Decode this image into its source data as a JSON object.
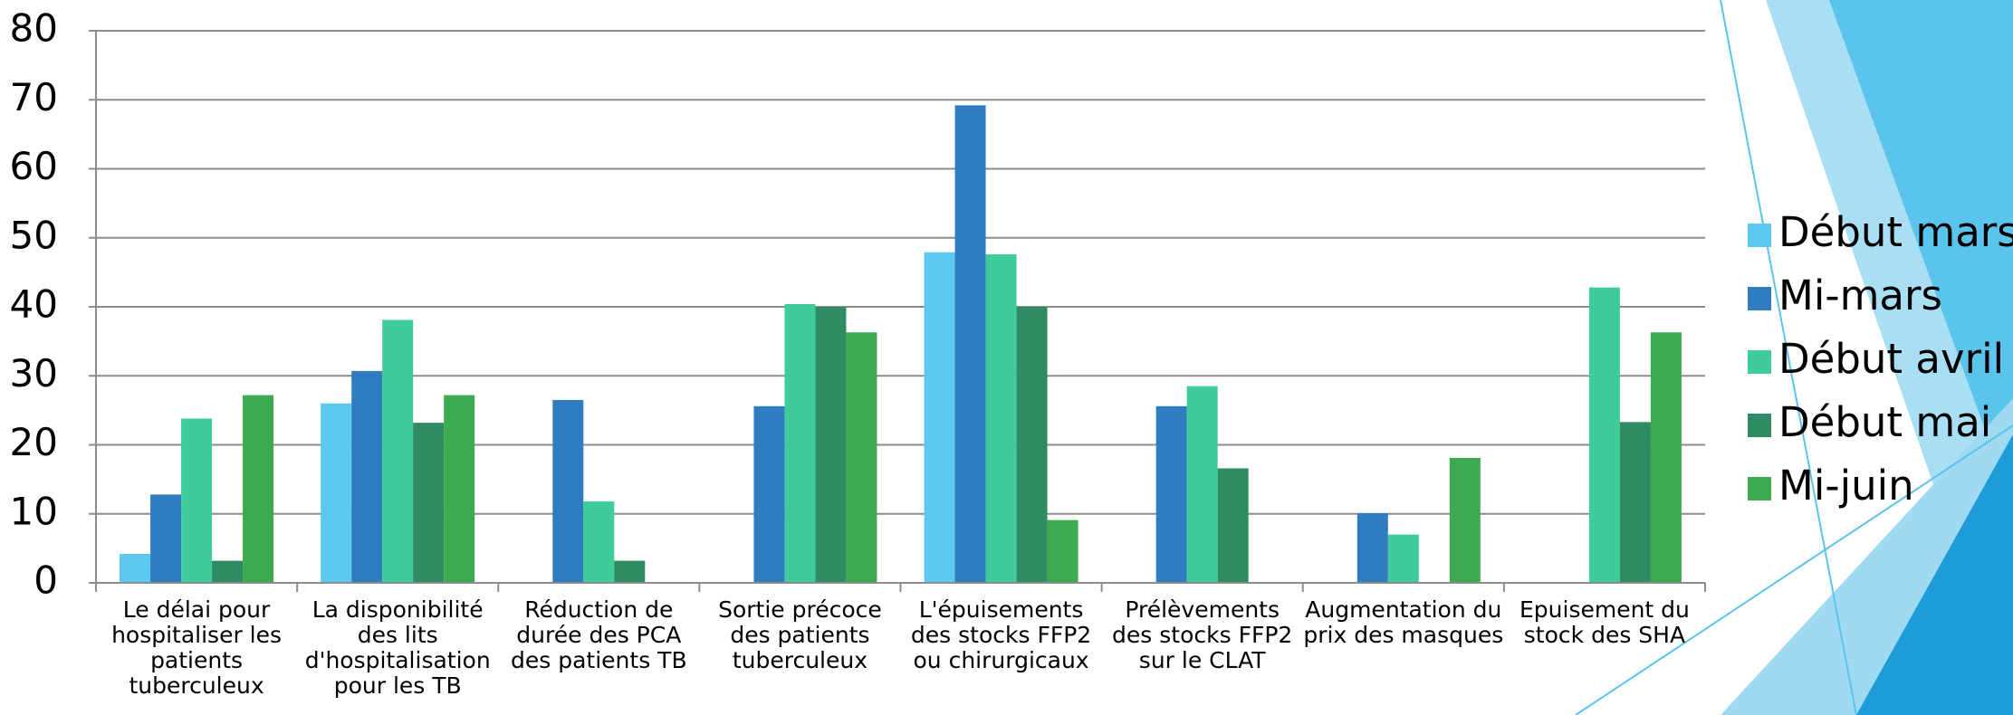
{
  "chart_data": {
    "type": "bar",
    "categories": [
      "Le délai pour hospitaliser les patients tuberculeux",
      "La disponibilité des lits d'hospitalisation pour les TB",
      "Réduction de durée des PCA des patients TB",
      "Sortie précoce des patients tuberculeux",
      "L'épuisements des stocks FFP2 ou chirurgicaux",
      "Prélèvements des stocks FFP2 sur le CLAT",
      "Augmentation du prix des masques",
      "Epuisement du stock des SHA"
    ],
    "series": [
      {
        "name": "Début mars",
        "color": "#5bc8ee",
        "values": [
          4.2,
          26,
          0,
          0,
          47.9,
          0,
          0,
          0
        ]
      },
      {
        "name": "Mi-mars",
        "color": "#2f7cc0",
        "values": [
          12.8,
          30.7,
          26.5,
          25.6,
          69.2,
          25.6,
          10.1,
          0
        ]
      },
      {
        "name": "Début avril",
        "color": "#3ecc9a",
        "values": [
          23.8,
          38.1,
          11.8,
          40.4,
          47.6,
          28.5,
          7,
          42.8
        ]
      },
      {
        "name": "Début mai",
        "color": "#2e8b63",
        "values": [
          3.2,
          23.2,
          3.2,
          40,
          40,
          16.6,
          0,
          23.3
        ]
      },
      {
        "name": "Mi-juin",
        "color": "#3caa4f",
        "values": [
          27.2,
          27.2,
          0,
          36.3,
          9.1,
          0,
          18.1,
          36.3
        ]
      }
    ],
    "ylim": [
      0,
      80
    ],
    "yticks": [
      0,
      10,
      20,
      30,
      40,
      50,
      60,
      70,
      80
    ],
    "grid": true,
    "legend": "right"
  }
}
